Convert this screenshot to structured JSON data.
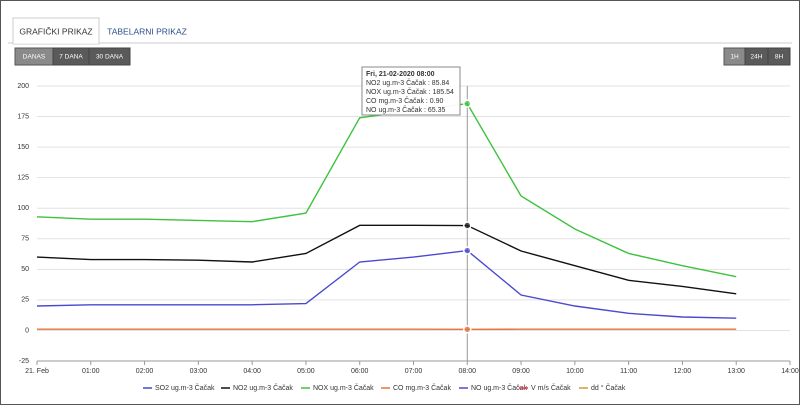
{
  "tabs": [
    "GRAFIČKI PRIKAZ",
    "TABELARNI PRIKAZ"
  ],
  "range_buttons": [
    "DANAS",
    "7 DANA",
    "30 DANA"
  ],
  "interval_buttons": [
    "1H",
    "24H",
    "8H"
  ],
  "chart_data": {
    "type": "line",
    "x": [
      0,
      1,
      2,
      3,
      4,
      5,
      6,
      7,
      8,
      9,
      10,
      11,
      12,
      13
    ],
    "xlim": [
      0,
      14
    ],
    "xticks": [
      {
        "value": 0,
        "label": "21. Feb"
      },
      {
        "value": 1,
        "label": "01:00"
      },
      {
        "value": 2,
        "label": "02:00"
      },
      {
        "value": 3,
        "label": "03:00"
      },
      {
        "value": 4,
        "label": "04:00"
      },
      {
        "value": 5,
        "label": "05:00"
      },
      {
        "value": 6,
        "label": "06:00"
      },
      {
        "value": 7,
        "label": "07:00"
      },
      {
        "value": 8,
        "label": "08:00"
      },
      {
        "value": 9,
        "label": "09:00"
      },
      {
        "value": 10,
        "label": "10:00"
      },
      {
        "value": 11,
        "label": "11:00"
      },
      {
        "value": 12,
        "label": "12:00"
      },
      {
        "value": 13,
        "label": "13:00"
      },
      {
        "value": 14,
        "label": "14:00"
      }
    ],
    "ylim": [
      -25,
      200
    ],
    "yticks": [
      -25,
      0,
      25,
      50,
      75,
      100,
      125,
      150,
      175,
      200
    ],
    "grid": true,
    "series": [
      {
        "name": "SO2 ug.m-3 Čačak",
        "color": "#3b4fc4",
        "values": [
          null,
          null,
          null,
          null,
          null,
          null,
          null,
          null,
          null,
          null,
          null,
          null,
          null,
          null
        ]
      },
      {
        "name": "NO2 ug.m-3 Čačak",
        "color": "#111111",
        "values": [
          60,
          58,
          58,
          57.5,
          56,
          63,
          86,
          86,
          85.84,
          65,
          53,
          41,
          36,
          30
        ]
      },
      {
        "name": "NOX ug.m-3 Čačak",
        "color": "#3fc23f",
        "values": [
          93,
          91,
          91,
          90,
          89,
          96,
          174,
          180,
          185.54,
          110,
          83,
          63,
          53,
          44
        ]
      },
      {
        "name": "CO mg.m-3 Čačak",
        "color": "#e8743b",
        "values": [
          1,
          1,
          1,
          1,
          1,
          1,
          1,
          1,
          0.9,
          1,
          1,
          1,
          1,
          1
        ]
      },
      {
        "name": "NO ug.m-3 Čačak",
        "color": "#4a4ad0",
        "values": [
          20,
          21,
          21,
          21,
          21,
          22,
          56,
          60,
          65.35,
          29,
          20,
          14,
          11,
          10
        ]
      },
      {
        "name": "V m/s Čačak",
        "color": "#e8334a",
        "values": [
          null,
          null,
          null,
          null,
          null,
          null,
          null,
          null,
          null,
          null,
          null,
          null,
          null,
          null
        ]
      },
      {
        "name": "dd ° Čačak",
        "color": "#c8a032",
        "values": [
          null,
          null,
          null,
          null,
          null,
          null,
          null,
          null,
          null,
          null,
          null,
          null,
          null,
          null
        ]
      }
    ],
    "highlight_x": 8,
    "tooltip": {
      "title": "Fri, 21-02-2020 08:00",
      "rows": [
        "NO2 ug.m-3 Čačak : 85.84",
        "NOX ug.m-3 Čačak : 185.54",
        "CO mg.m-3 Čačak : 0.90",
        "NO ug.m-3 Čačak : 65.35"
      ]
    }
  }
}
